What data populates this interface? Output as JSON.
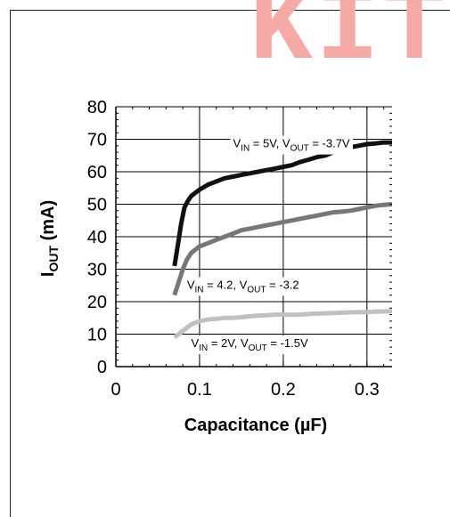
{
  "watermark": "KIT",
  "chart_data": {
    "type": "line",
    "xlabel": "Capacitance (µF)",
    "ylabel": "I_OUT (mA)",
    "ylabel_parts": {
      "main": "I",
      "sub": "OUT",
      "rest": " (mA)"
    },
    "xlim": [
      0,
      0.33
    ],
    "ylim": [
      0,
      80
    ],
    "x_ticks": [
      0,
      0.1,
      0.2,
      0.3
    ],
    "x_tick_labels": [
      "0",
      "0.1",
      "0.2",
      "0.3"
    ],
    "y_ticks": [
      0,
      10,
      20,
      30,
      40,
      50,
      60,
      70,
      80
    ],
    "y_tick_labels": [
      "0",
      "10",
      "20",
      "30",
      "40",
      "50",
      "60",
      "70",
      "80"
    ],
    "grid": true,
    "series": [
      {
        "color": "#111111",
        "x": [
          0.07,
          0.072,
          0.075,
          0.078,
          0.082,
          0.086,
          0.09,
          0.095,
          0.1,
          0.11,
          0.12,
          0.13,
          0.14,
          0.15,
          0.16,
          0.17,
          0.18,
          0.19,
          0.2,
          0.21,
          0.22,
          0.23,
          0.24,
          0.25,
          0.26,
          0.27,
          0.28,
          0.29,
          0.3,
          0.31,
          0.32,
          0.33
        ],
        "y": [
          31,
          34,
          39,
          44,
          49,
          51,
          52.5,
          53.5,
          54.5,
          56,
          57,
          58,
          58.5,
          59,
          59.5,
          60,
          60.5,
          61,
          61.5,
          62,
          63,
          63.7,
          64.5,
          65,
          66,
          66.7,
          67.5,
          68,
          68.5,
          68.7,
          69,
          69
        ]
      },
      {
        "color": "#777777",
        "x": [
          0.07,
          0.075,
          0.08,
          0.085,
          0.09,
          0.1,
          0.11,
          0.12,
          0.13,
          0.14,
          0.15,
          0.16,
          0.17,
          0.18,
          0.19,
          0.2,
          0.21,
          0.22,
          0.23,
          0.24,
          0.25,
          0.26,
          0.27,
          0.28,
          0.29,
          0.3,
          0.31,
          0.32,
          0.33
        ],
        "y": [
          22,
          26,
          30,
          33,
          35,
          37,
          38,
          39,
          40,
          41,
          42,
          42.5,
          43,
          43.5,
          44,
          44.5,
          45,
          45.5,
          46,
          46.5,
          47,
          47.5,
          47.7,
          48,
          48.5,
          49,
          49.5,
          49.8,
          50
        ]
      },
      {
        "color": "#c0c0c0",
        "x": [
          0.07,
          0.08,
          0.09,
          0.1,
          0.11,
          0.12,
          0.13,
          0.14,
          0.15,
          0.16,
          0.17,
          0.18,
          0.19,
          0.2,
          0.21,
          0.22,
          0.23,
          0.24,
          0.25,
          0.26,
          0.27,
          0.28,
          0.29,
          0.3,
          0.31,
          0.32,
          0.33
        ],
        "y": [
          9,
          11,
          13,
          14,
          14.5,
          14.7,
          15,
          15,
          15.2,
          15.5,
          15.7,
          15.8,
          16,
          16,
          16,
          16,
          16.2,
          16.3,
          16.4,
          16.5,
          16.6,
          16.7,
          16.8,
          16.8,
          16.9,
          17,
          17
        ]
      }
    ],
    "annotations": [
      {
        "id": "vin5",
        "parts": [
          [
            "V",
            "IN",
            " = 5V, V",
            "OUT",
            " = -3.7V"
          ]
        ],
        "x": 0.14,
        "y": 67.5
      },
      {
        "id": "vin42",
        "parts": [
          [
            "V",
            "IN",
            " = 4.2, V",
            "OUT",
            " = -3.2"
          ]
        ],
        "x": 0.085,
        "y": 24
      },
      {
        "id": "vin2",
        "parts": [
          [
            "V",
            "IN",
            " = 2V, V",
            "OUT",
            " = -1.5V"
          ]
        ],
        "x": 0.09,
        "y": 6
      }
    ]
  }
}
